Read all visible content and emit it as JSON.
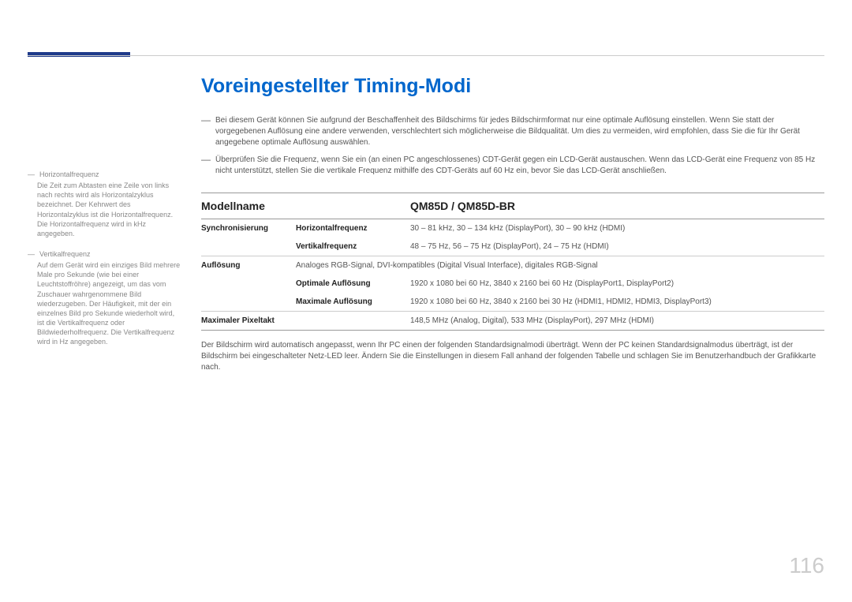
{
  "colors": {
    "accent": "#1e3a8a",
    "heading": "#0066cc",
    "rule": "#cccccc",
    "rule_strong": "#999999",
    "body_text": "#555555",
    "sidebar_text": "#888888",
    "pagenum": "#cccccc"
  },
  "page_number": "116",
  "heading": "Voreingestellter Timing-Modi",
  "bullets": [
    "Bei diesem Gerät können Sie aufgrund der Beschaffenheit des Bildschirms für jedes Bildschirmformat nur eine optimale Auflösung einstellen. Wenn Sie statt der vorgegebenen Auflösung eine andere verwenden, verschlechtert sich möglicherweise die Bildqualität. Um dies zu vermeiden, wird empfohlen, dass Sie die für Ihr Gerät angegebene optimale Auflösung auswählen.",
    "Überprüfen Sie die Frequenz, wenn Sie ein (an einen PC angeschlossenes) CDT-Gerät gegen ein LCD-Gerät austauschen. Wenn das LCD-Gerät eine Frequenz von 85 Hz nicht unterstützt, stellen Sie die vertikale Frequenz mithilfe des CDT-Geräts auf 60 Hz ein, bevor Sie das LCD-Gerät anschließen."
  ],
  "sidebar": [
    {
      "title": "Horizontalfrequenz",
      "body": "Die Zeit zum Abtasten eine Zeile von links nach rechts wird als Horizontalzyklus bezeichnet. Der Kehrwert des Horizontalzyklus ist die Horizontalfrequenz. Die Horizontalfrequenz wird in kHz angegeben."
    },
    {
      "title": "Vertikalfrequenz",
      "body": "Auf dem Gerät wird ein einziges Bild mehrere Male pro Sekunde (wie bei einer Leuchtstoffröhre) angezeigt, um das vom Zuschauer wahrgenommene Bild wiederzugeben. Der Häufigkeit, mit der ein einzelnes Bild pro Sekunde wiederholt wird, ist die Vertikalfrequenz oder Bildwiederholfrequenz. Die Vertikalfrequenz wird in Hz angegeben."
    }
  ],
  "table": {
    "header": {
      "col1": "Modellname",
      "col2": "QM85D / QM85D-BR"
    },
    "rows": [
      {
        "group": "Synchronisierung",
        "label": "Horizontalfrequenz",
        "value": "30 – 81 kHz, 30 – 134 kHz (DisplayPort), 30 – 90 kHz (HDMI)"
      },
      {
        "group": "",
        "label": "Vertikalfrequenz",
        "value": "48 – 75 Hz, 56 – 75 Hz (DisplayPort), 24 – 75 Hz (HDMI)",
        "section_end": true
      },
      {
        "group": "Auflösung",
        "label": "",
        "value": "Analoges RGB-Signal, DVI-kompatibles (Digital Visual Interface), digitales RGB-Signal",
        "span": true
      },
      {
        "group": "",
        "label": "Optimale Auflösung",
        "value": "1920 x 1080 bei 60 Hz, 3840 x 2160 bei 60 Hz (DisplayPort1, DisplayPort2)"
      },
      {
        "group": "",
        "label": "Maximale Auflösung",
        "value": "1920 x 1080 bei 60 Hz, 3840 x 2160 bei 30 Hz (HDMI1, HDMI2, HDMI3, DisplayPort3)",
        "section_end": true
      },
      {
        "group": "Maximaler Pixeltakt",
        "label": "",
        "value": "148,5 MHz (Analog, Digital), 533 MHz (DisplayPort), 297 MHz (HDMI)",
        "span": true,
        "final": true
      }
    ]
  },
  "footer_text": "Der Bildschirm wird automatisch angepasst, wenn Ihr PC einen der folgenden Standardsignalmodi überträgt. Wenn der PC keinen Standardsignalmodus überträgt, ist der Bildschirm bei eingeschalteter Netz-LED leer. Ändern Sie die Einstellungen in diesem Fall anhand der folgenden Tabelle und schlagen Sie im Benutzerhandbuch der Grafikkarte nach."
}
